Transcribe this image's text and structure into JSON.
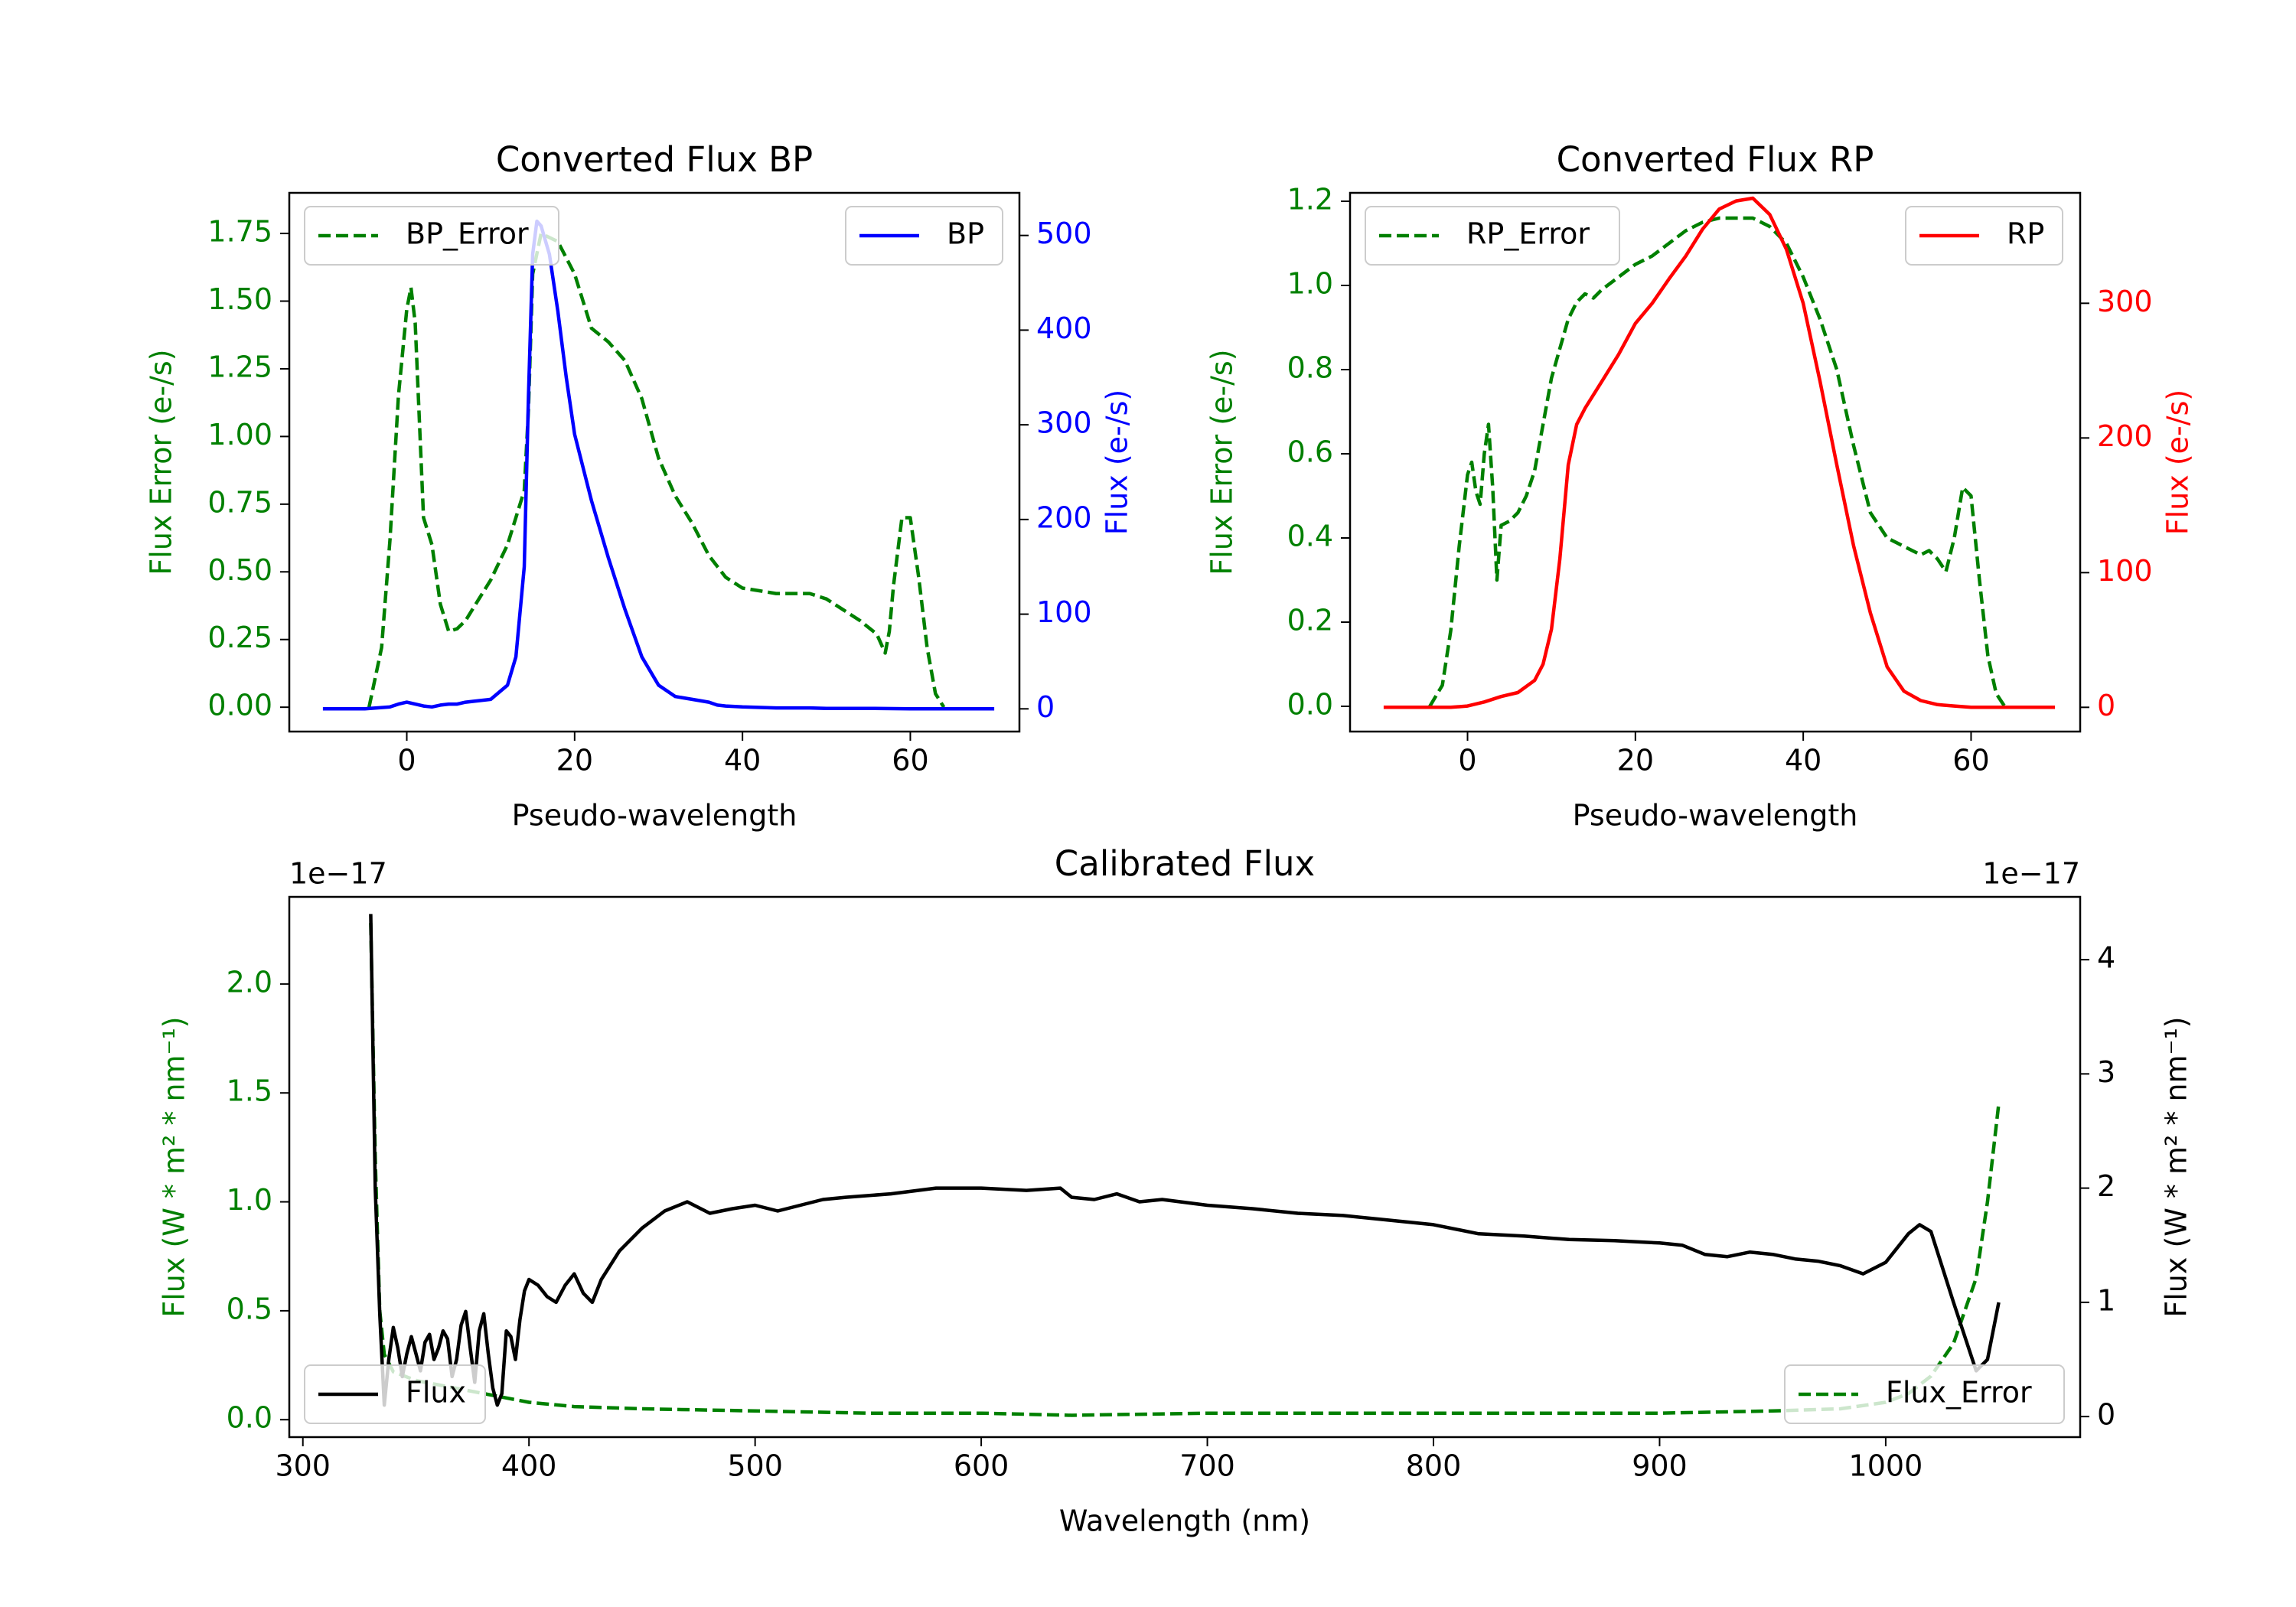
{
  "colors": {
    "green": "#008000",
    "blue": "#0000ff",
    "red": "#ff0000",
    "black": "#000000"
  },
  "chart_data": [
    {
      "id": "bp",
      "type": "line",
      "title": "Converted Flux BP",
      "xlabel": "Pseudo-wavelength",
      "ylabel_left": "Flux Error (e-/s)",
      "ylabel_right": "Flux (e-/s)",
      "xlim": [
        -14,
        73
      ],
      "ylim_left": [
        -0.09,
        1.9
      ],
      "ylim_right": [
        -24,
        545
      ],
      "xticks": [
        0,
        20,
        40,
        60
      ],
      "xtick_labels": [
        "0",
        "20",
        "40",
        "60"
      ],
      "yticks_left": [
        0,
        0.25,
        0.5,
        0.75,
        1.0,
        1.25,
        1.5,
        1.75
      ],
      "ytick_labels_left": [
        "0.00",
        "0.25",
        "0.50",
        "0.75",
        "1.00",
        "1.25",
        "1.50",
        "1.75"
      ],
      "yticks_right": [
        0,
        100,
        200,
        300,
        400,
        500
      ],
      "ytick_labels_right": [
        "0",
        "100",
        "200",
        "300",
        "400",
        "500"
      ],
      "series": [
        {
          "name": "BP_Error",
          "axis": "left",
          "style": "dashed",
          "color": "#008000",
          "legend_label": "BP_Error",
          "legend_pos": "upper left",
          "x": [
            -4.5,
            -3,
            -2,
            -1,
            0,
            0.5,
            1,
            2,
            3,
            4,
            5,
            6,
            7,
            8,
            10,
            12,
            14,
            14.5,
            15,
            16,
            18,
            20,
            21,
            22,
            24,
            26,
            28,
            30,
            32,
            34,
            36,
            38,
            40,
            42,
            44,
            46,
            48,
            50,
            52,
            54,
            56,
            57,
            57.5,
            58,
            59,
            60,
            61,
            62,
            63,
            64
          ],
          "y": [
            0,
            0.22,
            0.62,
            1.15,
            1.47,
            1.55,
            1.42,
            0.7,
            0.6,
            0.38,
            0.28,
            0.29,
            0.32,
            0.37,
            0.47,
            0.6,
            0.8,
            1.1,
            1.6,
            1.75,
            1.72,
            1.6,
            1.5,
            1.4,
            1.35,
            1.28,
            1.14,
            0.92,
            0.78,
            0.68,
            0.56,
            0.48,
            0.44,
            0.43,
            0.42,
            0.42,
            0.42,
            0.4,
            0.36,
            0.32,
            0.27,
            0.2,
            0.28,
            0.45,
            0.7,
            0.7,
            0.48,
            0.22,
            0.05,
            0
          ]
        },
        {
          "name": "BP",
          "axis": "right",
          "style": "solid",
          "color": "#0000ff",
          "legend_label": "BP",
          "legend_pos": "upper right",
          "x": [
            -10,
            -5,
            -2,
            -1,
            0,
            1,
            2,
            3,
            4,
            5,
            6,
            7,
            8,
            10,
            12,
            13,
            14,
            14.5,
            15,
            15.5,
            16,
            17,
            18,
            19,
            20,
            22,
            24,
            26,
            28,
            30,
            32,
            34,
            36,
            37,
            38,
            40,
            44,
            46,
            48,
            50,
            55,
            60,
            65,
            70
          ],
          "y": [
            0,
            0,
            2,
            5,
            7,
            5,
            3,
            2,
            4,
            5,
            5,
            7,
            8,
            10,
            25,
            55,
            150,
            330,
            480,
            515,
            510,
            480,
            420,
            350,
            290,
            220,
            160,
            105,
            55,
            25,
            13,
            10,
            7,
            4,
            3,
            2,
            1,
            1,
            1,
            0.5,
            0.5,
            0,
            0,
            0
          ]
        }
      ]
    },
    {
      "id": "rp",
      "type": "line",
      "title": "Converted Flux RP",
      "xlabel": "Pseudo-wavelength",
      "ylabel_left": "Flux Error (e-/s)",
      "ylabel_right": "Flux (e-/s)",
      "xlim": [
        -14,
        73
      ],
      "ylim_left": [
        -0.06,
        1.22
      ],
      "ylim_right": [
        -18,
        382
      ],
      "xticks": [
        0,
        20,
        40,
        60
      ],
      "xtick_labels": [
        "0",
        "20",
        "40",
        "60"
      ],
      "yticks_left": [
        0,
        0.2,
        0.4,
        0.6,
        0.8,
        1.0,
        1.2
      ],
      "ytick_labels_left": [
        "0.0",
        "0.2",
        "0.4",
        "0.6",
        "0.8",
        "1.0",
        "1.2"
      ],
      "yticks_right": [
        0,
        100,
        200,
        300
      ],
      "ytick_labels_right": [
        "0",
        "100",
        "200",
        "300"
      ],
      "series": [
        {
          "name": "RP_Error",
          "axis": "left",
          "style": "dashed",
          "color": "#008000",
          "legend_label": "RP_Error",
          "legend_pos": "upper left",
          "x": [
            -4.5,
            -3,
            -2,
            -1,
            0,
            0.5,
            1,
            1.5,
            2,
            2.5,
            3,
            3.5,
            4,
            5,
            6,
            7,
            8,
            10,
            12,
            13,
            14,
            15,
            16,
            18,
            20,
            22,
            24,
            26,
            28,
            30,
            32,
            34,
            36,
            38,
            40,
            42,
            44,
            46,
            48,
            50,
            52,
            54,
            55,
            56,
            57,
            58,
            59,
            60,
            61,
            62,
            63,
            64
          ],
          "y": [
            0,
            0.05,
            0.18,
            0.38,
            0.55,
            0.58,
            0.51,
            0.48,
            0.6,
            0.67,
            0.52,
            0.3,
            0.43,
            0.44,
            0.46,
            0.5,
            0.56,
            0.78,
            0.92,
            0.96,
            0.98,
            0.97,
            0.99,
            1.02,
            1.05,
            1.07,
            1.1,
            1.13,
            1.15,
            1.16,
            1.16,
            1.16,
            1.14,
            1.1,
            1.02,
            0.92,
            0.8,
            0.62,
            0.46,
            0.4,
            0.38,
            0.36,
            0.37,
            0.35,
            0.32,
            0.4,
            0.52,
            0.5,
            0.3,
            0.12,
            0.03,
            0
          ]
        },
        {
          "name": "RP",
          "axis": "right",
          "style": "solid",
          "color": "#ff0000",
          "legend_label": "RP",
          "legend_pos": "upper right",
          "x": [
            -10,
            -2,
            0,
            2,
            4,
            6,
            8,
            9,
            10,
            11,
            12,
            13,
            14,
            16,
            18,
            20,
            22,
            24,
            26,
            28,
            30,
            32,
            34,
            36,
            38,
            40,
            42,
            44,
            46,
            48,
            50,
            52,
            54,
            56,
            58,
            60,
            62,
            65,
            70
          ],
          "y": [
            0,
            0,
            1,
            4,
            8,
            11,
            20,
            32,
            58,
            110,
            180,
            210,
            222,
            242,
            262,
            285,
            300,
            318,
            335,
            355,
            370,
            376,
            378,
            366,
            340,
            300,
            242,
            180,
            120,
            70,
            30,
            12,
            5,
            2,
            1,
            0,
            0,
            0,
            0
          ]
        }
      ]
    },
    {
      "id": "cal",
      "type": "line",
      "title": "Calibrated Flux",
      "xlabel": "Wavelength (nm)",
      "ylabel_left": "Flux (W * m² * nm⁻¹)",
      "ylabel_right": "Flux (W * m² * nm⁻¹)",
      "offset_left": "1e−17",
      "offset_right": "1e−17",
      "xlim": [
        294,
        1086
      ],
      "ylim_left": [
        -0.08,
        2.4
      ],
      "ylim_right": [
        -0.18,
        4.55
      ],
      "xticks": [
        300,
        400,
        500,
        600,
        700,
        800,
        900,
        1000
      ],
      "xtick_labels": [
        "300",
        "400",
        "500",
        "600",
        "700",
        "800",
        "900",
        "1000"
      ],
      "yticks_left": [
        0,
        0.5,
        1.0,
        1.5,
        2.0
      ],
      "ytick_labels_left": [
        "0.0",
        "0.5",
        "1.0",
        "1.5",
        "2.0"
      ],
      "yticks_right": [
        0,
        1,
        2,
        3,
        4
      ],
      "ytick_labels_right": [
        "0",
        "1",
        "2",
        "3",
        "4"
      ],
      "series": [
        {
          "name": "Flux_Error",
          "axis": "left",
          "style": "dashed",
          "color": "#008000",
          "legend_label": "Flux_Error",
          "legend_pos": "lower right",
          "x": [
            330,
            332,
            334,
            336,
            340,
            350,
            360,
            370,
            380,
            390,
            400,
            420,
            450,
            500,
            550,
            600,
            640,
            700,
            800,
            900,
            950,
            980,
            1000,
            1010,
            1020,
            1030,
            1040,
            1045,
            1050
          ],
          "y": [
            2.28,
            1.2,
            0.5,
            0.3,
            0.22,
            0.18,
            0.16,
            0.14,
            0.12,
            0.1,
            0.08,
            0.06,
            0.05,
            0.04,
            0.03,
            0.03,
            0.02,
            0.03,
            0.03,
            0.03,
            0.04,
            0.05,
            0.08,
            0.12,
            0.2,
            0.35,
            0.65,
            1.0,
            1.45
          ]
        },
        {
          "name": "Flux",
          "axis": "right",
          "style": "solid",
          "color": "#000000",
          "legend_label": "Flux",
          "legend_pos": "lower left",
          "x": [
            330,
            332,
            334,
            336,
            338,
            340,
            342,
            344,
            346,
            348,
            350,
            352,
            354,
            356,
            358,
            360,
            362,
            364,
            366,
            368,
            370,
            372,
            374,
            376,
            378,
            380,
            382,
            384,
            386,
            388,
            390,
            392,
            394,
            396,
            398,
            400,
            404,
            408,
            412,
            416,
            420,
            424,
            428,
            432,
            440,
            450,
            460,
            470,
            480,
            490,
            500,
            510,
            520,
            530,
            540,
            560,
            580,
            600,
            620,
            635,
            640,
            650,
            660,
            670,
            680,
            700,
            720,
            740,
            760,
            780,
            800,
            820,
            840,
            860,
            880,
            900,
            910,
            920,
            930,
            940,
            950,
            960,
            970,
            980,
            990,
            1000,
            1010,
            1015,
            1020,
            1030,
            1040,
            1045,
            1050
          ],
          "y": [
            4.4,
            2.0,
            0.9,
            0.1,
            0.5,
            0.78,
            0.6,
            0.35,
            0.55,
            0.7,
            0.55,
            0.4,
            0.65,
            0.72,
            0.5,
            0.6,
            0.75,
            0.68,
            0.35,
            0.5,
            0.8,
            0.92,
            0.6,
            0.3,
            0.75,
            0.9,
            0.55,
            0.25,
            0.1,
            0.2,
            0.75,
            0.7,
            0.5,
            0.85,
            1.1,
            1.2,
            1.15,
            1.05,
            1.0,
            1.15,
            1.25,
            1.08,
            1.0,
            1.2,
            1.45,
            1.65,
            1.8,
            1.88,
            1.78,
            1.82,
            1.85,
            1.8,
            1.85,
            1.9,
            1.92,
            1.95,
            2.0,
            2.0,
            1.98,
            2.0,
            1.92,
            1.9,
            1.95,
            1.88,
            1.9,
            1.85,
            1.82,
            1.78,
            1.76,
            1.72,
            1.68,
            1.6,
            1.58,
            1.55,
            1.54,
            1.52,
            1.5,
            1.42,
            1.4,
            1.44,
            1.42,
            1.38,
            1.36,
            1.32,
            1.25,
            1.35,
            1.6,
            1.68,
            1.62,
            1.0,
            0.4,
            0.5,
            1.0
          ]
        }
      ]
    }
  ]
}
